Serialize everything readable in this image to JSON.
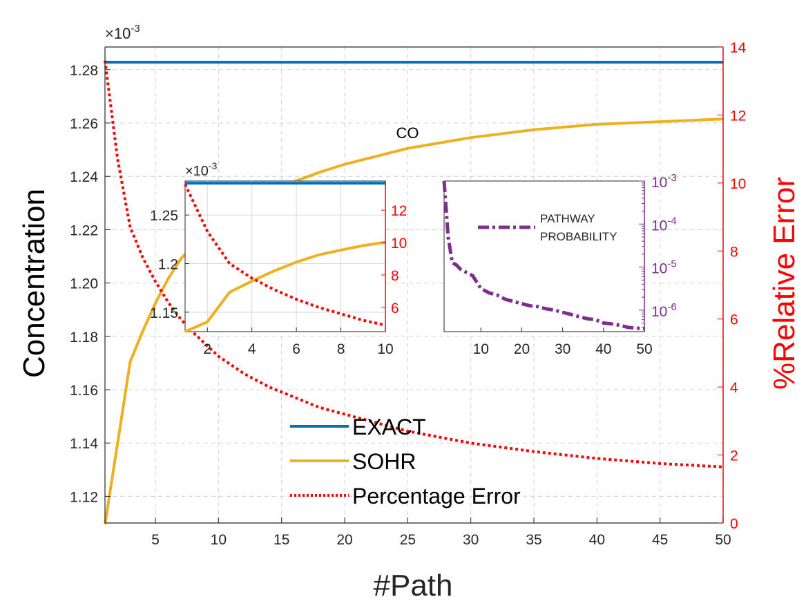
{
  "colors": {
    "exact": "#0072BD",
    "sohr": "#EDB120",
    "error": "#FF0000",
    "pathway": "#7E2F8E",
    "axis": "#262626",
    "grid": "#d0d0d0"
  },
  "chart_data": [
    {
      "type": "line",
      "role": "main",
      "annotation": "CO",
      "xlabel": "#Path",
      "ylabel": "Concentration",
      "y2label": "%Relative Error",
      "y_exponent_base": "×10",
      "y_exponent_power": "-3",
      "xlim": [
        1,
        50
      ],
      "ylim": [
        1.11,
        1.2885
      ],
      "y2lim": [
        0,
        14
      ],
      "x_ticks": [
        5,
        10,
        15,
        20,
        25,
        30,
        35,
        40,
        45,
        50
      ],
      "y_ticks": [
        1.12,
        1.14,
        1.16,
        1.18,
        1.2,
        1.22,
        1.24,
        1.26,
        1.28
      ],
      "y2_ticks": [
        0,
        2,
        4,
        6,
        8,
        10,
        12,
        14
      ],
      "grid": true,
      "legend": {
        "placement": "lower-center",
        "entries": [
          "EXACT",
          "SOHR",
          "Percentage Error"
        ]
      },
      "series": [
        {
          "name": "EXACT",
          "axis": "left",
          "style": "solid",
          "x": [
            1,
            50
          ],
          "y": [
            1.2828,
            1.2828
          ]
        },
        {
          "name": "SOHR",
          "axis": "left",
          "style": "solid",
          "x": [
            1,
            2,
            3,
            4,
            5,
            6,
            7,
            8,
            10,
            12,
            14,
            16,
            18,
            20,
            25,
            30,
            35,
            40,
            45,
            50
          ],
          "y": [
            1.1095,
            1.14,
            1.1705,
            1.182,
            1.1925,
            1.2015,
            1.209,
            1.214,
            1.222,
            1.2285,
            1.2335,
            1.238,
            1.2415,
            1.2445,
            1.2505,
            1.2545,
            1.2575,
            1.2595,
            1.2605,
            1.2615
          ]
        },
        {
          "name": "Percentage Error",
          "axis": "right",
          "style": "dotted",
          "x": [
            1,
            2,
            3,
            4,
            5,
            6,
            7,
            8,
            10,
            12,
            14,
            16,
            18,
            20,
            25,
            30,
            35,
            40,
            45,
            50
          ],
          "y": [
            13.6,
            10.7,
            8.7,
            7.8,
            7.1,
            6.5,
            6.0,
            5.6,
            4.9,
            4.4,
            4.0,
            3.7,
            3.4,
            3.2,
            2.7,
            2.35,
            2.1,
            1.9,
            1.75,
            1.65
          ]
        }
      ]
    },
    {
      "type": "line",
      "role": "inset-left",
      "y_exponent_base": "×10",
      "y_exponent_power": "-3",
      "xlim": [
        1,
        10
      ],
      "ylim": [
        1.13,
        1.285
      ],
      "y2lim": [
        4.5,
        13.8
      ],
      "x_ticks": [
        2,
        4,
        6,
        8,
        10
      ],
      "y_ticks": [
        1.15,
        1.2,
        1.25
      ],
      "y_tick_labels": [
        "1.15",
        "1.2",
        "1.25"
      ],
      "y2_ticks": [
        6,
        8,
        10,
        12
      ],
      "grid": true,
      "series": [
        {
          "name": "EXACT",
          "axis": "left",
          "style": "solid",
          "x": [
            1,
            10
          ],
          "y": [
            1.2828,
            1.2828
          ]
        },
        {
          "name": "SOHR",
          "axis": "left",
          "style": "solid",
          "x": [
            1,
            2,
            3,
            4,
            5,
            6,
            7,
            8,
            9,
            10
          ],
          "y": [
            1.1095,
            1.14,
            1.1705,
            1.182,
            1.1925,
            1.2015,
            1.209,
            1.214,
            1.2185,
            1.222
          ]
        },
        {
          "name": "Percentage Error",
          "axis": "right",
          "style": "dotted",
          "x": [
            1,
            2,
            3,
            4,
            5,
            6,
            7,
            8,
            9,
            10
          ],
          "y": [
            13.6,
            10.7,
            8.7,
            7.8,
            7.1,
            6.5,
            6.0,
            5.6,
            5.2,
            4.9
          ]
        }
      ]
    },
    {
      "type": "line",
      "role": "inset-right",
      "y_scale": "log",
      "xlim": [
        1,
        50
      ],
      "ylim_log10": [
        -6.5,
        -3
      ],
      "x_ticks": [
        10,
        20,
        30,
        40,
        50
      ],
      "y2_ticks_log10": [
        -6,
        -5,
        -4,
        -3
      ],
      "y2_tick_base": "10",
      "y2_tick_powers": [
        "-6",
        "-5",
        "-4",
        "-3"
      ],
      "grid": false,
      "legend": {
        "placement": "top-right",
        "entries": [
          "PATHWAY",
          "PROBABILITY"
        ]
      },
      "series": [
        {
          "name": "PATHWAY PROBABILITY",
          "axis": "right",
          "style": "dashdot",
          "x": [
            1,
            2,
            3,
            4,
            5,
            6,
            7,
            8,
            9,
            10,
            12,
            14,
            16,
            18,
            20,
            22,
            24,
            26,
            28,
            30,
            32,
            34,
            36,
            38,
            40,
            42,
            44,
            46,
            48,
            50
          ],
          "y_log10": [
            -3.0,
            -4.3,
            -4.9,
            -4.95,
            -5.05,
            -5.1,
            -5.15,
            -5.2,
            -5.35,
            -5.5,
            -5.6,
            -5.65,
            -5.75,
            -5.8,
            -5.85,
            -5.9,
            -5.92,
            -5.97,
            -6.0,
            -6.05,
            -6.1,
            -6.15,
            -6.2,
            -6.22,
            -6.3,
            -6.32,
            -6.35,
            -6.4,
            -6.42,
            -6.43
          ]
        }
      ]
    }
  ]
}
